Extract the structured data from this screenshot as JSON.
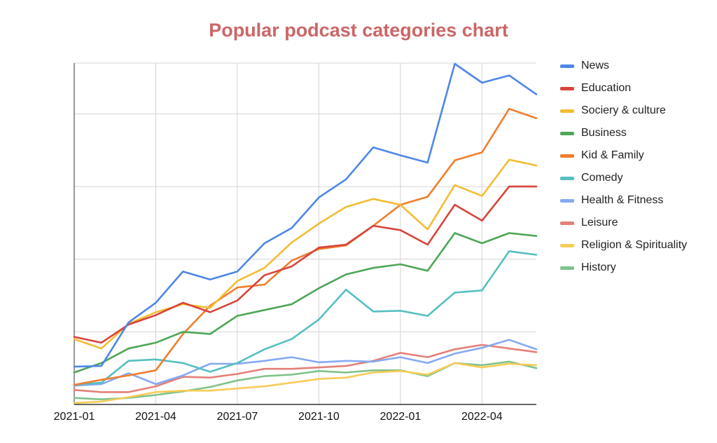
{
  "colors": {
    "title": "#cc6666",
    "grid": "#d4d4d4",
    "axis": "#333333"
  },
  "chart_data": {
    "type": "line",
    "title": "Popular podcast categories chart",
    "xlabel": "",
    "ylabel": "",
    "x": [
      "2021-01",
      "2021-02",
      "2021-03",
      "2021-04",
      "2021-05",
      "2021-06",
      "2021-07",
      "2021-08",
      "2021-09",
      "2021-10",
      "2021-11",
      "2021-12",
      "2022-01",
      "2022-02",
      "2022-03",
      "2022-04",
      "2022-05",
      "2022-06"
    ],
    "x_tick_labels": [
      "2021-01",
      "2021-04",
      "2021-07",
      "2021-10",
      "2022-01",
      "2022-04"
    ],
    "ylim": [
      0,
      4.7
    ],
    "y_gridlines": [
      0,
      1,
      2,
      3,
      4
    ],
    "grid": true,
    "legend_position": "right",
    "series": [
      {
        "name": "News",
        "color": "#4f86e8",
        "values": [
          0.52,
          0.53,
          1.13,
          1.4,
          1.83,
          1.72,
          1.83,
          2.22,
          2.43,
          2.85,
          3.1,
          3.54,
          3.43,
          3.33,
          4.69,
          4.43,
          4.53,
          4.27
        ]
      },
      {
        "name": "Education",
        "color": "#d6453c",
        "values": [
          0.93,
          0.85,
          1.1,
          1.23,
          1.4,
          1.27,
          1.43,
          1.78,
          1.9,
          2.16,
          2.2,
          2.46,
          2.4,
          2.2,
          2.75,
          2.53,
          3.0,
          3.0
        ]
      },
      {
        "name": "Sociery & culture",
        "color": "#f2bd33",
        "values": [
          0.9,
          0.77,
          1.11,
          1.27,
          1.38,
          1.33,
          1.7,
          1.88,
          2.23,
          2.49,
          2.72,
          2.83,
          2.75,
          2.41,
          3.02,
          2.87,
          3.37,
          3.29
        ]
      },
      {
        "name": "Business",
        "color": "#4ea656",
        "values": [
          0.44,
          0.57,
          0.77,
          0.85,
          1.0,
          0.97,
          1.22,
          1.3,
          1.38,
          1.6,
          1.79,
          1.88,
          1.93,
          1.84,
          2.36,
          2.22,
          2.36,
          2.32
        ]
      },
      {
        "name": "Kid & Family",
        "color": "#f07d2c",
        "values": [
          0.27,
          0.34,
          0.4,
          0.47,
          0.97,
          1.36,
          1.61,
          1.65,
          1.98,
          2.14,
          2.19,
          2.46,
          2.75,
          2.86,
          3.36,
          3.47,
          4.07,
          3.94
        ]
      },
      {
        "name": "Comedy",
        "color": "#57bfc0",
        "values": [
          0.27,
          0.3,
          0.6,
          0.62,
          0.57,
          0.45,
          0.57,
          0.76,
          0.9,
          1.17,
          1.58,
          1.28,
          1.29,
          1.22,
          1.54,
          1.57,
          2.11,
          2.06
        ]
      },
      {
        "name": "Health & Fitness",
        "color": "#86a9f2",
        "values": [
          0.26,
          0.28,
          0.43,
          0.28,
          0.4,
          0.56,
          0.56,
          0.6,
          0.65,
          0.58,
          0.6,
          0.59,
          0.65,
          0.57,
          0.7,
          0.78,
          0.89,
          0.76
        ]
      },
      {
        "name": "Leisure",
        "color": "#e38078",
        "values": [
          0.2,
          0.17,
          0.17,
          0.25,
          0.38,
          0.37,
          0.42,
          0.49,
          0.49,
          0.51,
          0.53,
          0.6,
          0.71,
          0.65,
          0.76,
          0.82,
          0.77,
          0.72
        ]
      },
      {
        "name": "Religion & Spirituality",
        "color": "#f7cc57",
        "values": [
          0.02,
          0.04,
          0.1,
          0.17,
          0.19,
          0.19,
          0.22,
          0.25,
          0.3,
          0.35,
          0.37,
          0.44,
          0.46,
          0.41,
          0.57,
          0.51,
          0.56,
          0.54
        ]
      },
      {
        "name": "History",
        "color": "#80c28a",
        "values": [
          0.09,
          0.07,
          0.09,
          0.13,
          0.18,
          0.24,
          0.33,
          0.39,
          0.41,
          0.46,
          0.44,
          0.47,
          0.47,
          0.39,
          0.57,
          0.54,
          0.59,
          0.5
        ]
      }
    ]
  }
}
